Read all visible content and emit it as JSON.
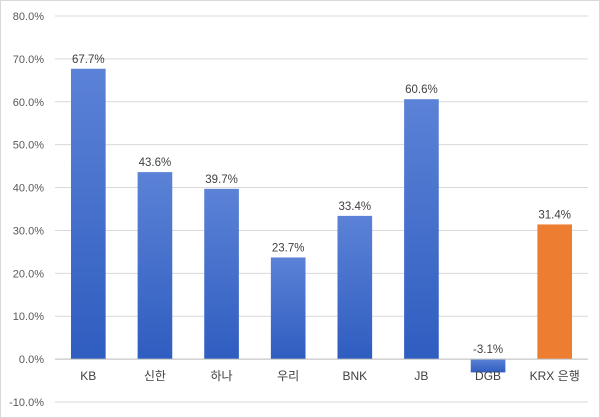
{
  "chart_data": {
    "type": "bar",
    "categories": [
      "KB",
      "신한",
      "하나",
      "우리",
      "BNK",
      "JB",
      "DGB",
      "KRX 은행"
    ],
    "values": [
      67.7,
      43.6,
      39.7,
      23.7,
      33.4,
      60.6,
      -3.1,
      31.4
    ],
    "data_labels": [
      "67.7%",
      "43.6%",
      "39.7%",
      "23.7%",
      "33.4%",
      "60.6%",
      "-3.1%",
      "31.4%"
    ],
    "y_tick_labels": [
      "80.0%",
      "70.0%",
      "60.0%",
      "50.0%",
      "40.0%",
      "30.0%",
      "20.0%",
      "10.0%",
      "0.0%",
      "-10.0%"
    ],
    "ylim": [
      -10,
      80
    ],
    "y_tick_step": 10,
    "grid": true,
    "legend": "none",
    "title": "",
    "xlabel": "",
    "ylabel": "",
    "colors": {
      "bar_top": "#5B82D6",
      "bar_bottom": "#2F5DC0",
      "highlight": "#ED7D31",
      "highlight_category": "KRX 은행",
      "grid": "#d9d9d9",
      "axis": "#bfbfbf"
    }
  }
}
